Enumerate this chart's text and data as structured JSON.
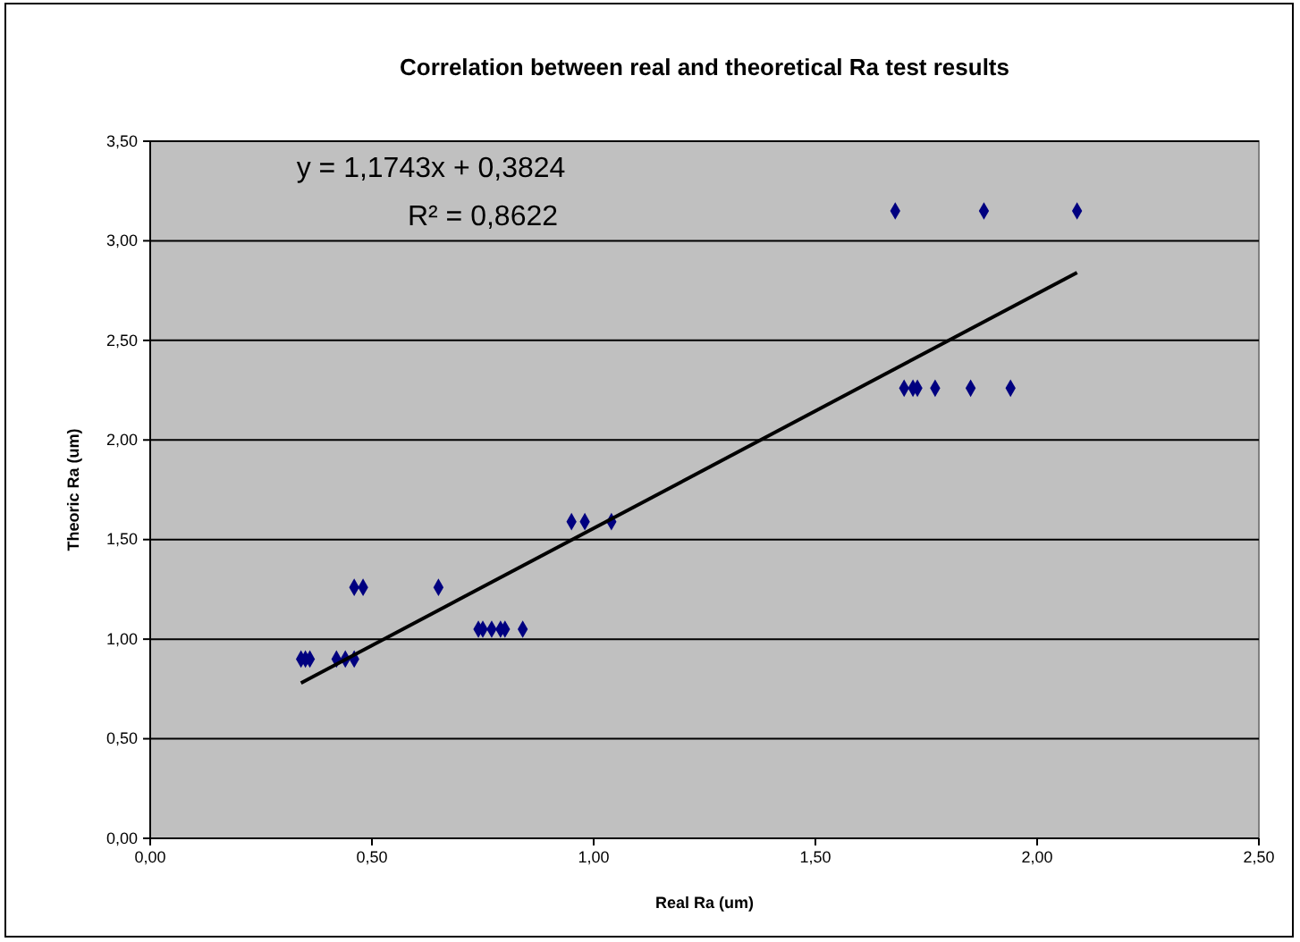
{
  "chart_data": {
    "type": "scatter",
    "title": "Correlation between real and theoretical Ra test results",
    "xlabel": "Real Ra (um)",
    "ylabel": "Theoric Ra (um)",
    "annotations": [
      "y = 1,1743x + 0,3824",
      "R² = 0,8622"
    ],
    "xlim": [
      0,
      2.5
    ],
    "ylim": [
      0,
      3.5
    ],
    "xticks": [
      {
        "value": 0,
        "label": "0,00"
      },
      {
        "value": 0.5,
        "label": "0,50"
      },
      {
        "value": 1,
        "label": "1,00"
      },
      {
        "value": 1.5,
        "label": "1,50"
      },
      {
        "value": 2,
        "label": "2,00"
      },
      {
        "value": 2.5,
        "label": "2,50"
      }
    ],
    "yticks": [
      {
        "value": 0,
        "label": "0,00"
      },
      {
        "value": 0.5,
        "label": "0,50"
      },
      {
        "value": 1,
        "label": "1,00"
      },
      {
        "value": 1.5,
        "label": "1,50"
      },
      {
        "value": 2,
        "label": "2,00"
      },
      {
        "value": 2.5,
        "label": "2,50"
      },
      {
        "value": 3,
        "label": "3,00"
      },
      {
        "value": 3.5,
        "label": "3,50"
      }
    ],
    "grid": "y",
    "series": [
      {
        "color": "#000080",
        "marker": "diamond",
        "x": [
          0.34,
          0.35,
          0.36,
          0.42,
          0.44,
          0.46,
          0.46,
          0.48,
          0.65,
          0.74,
          0.75,
          0.77,
          0.79,
          0.8,
          0.84,
          0.95,
          0.98,
          1.04,
          1.7,
          1.72,
          1.73,
          1.77,
          1.85,
          1.94,
          1.68,
          1.88,
          2.09
        ],
        "values": [
          0.9,
          0.9,
          0.9,
          0.9,
          0.9,
          0.9,
          1.26,
          1.26,
          1.26,
          1.05,
          1.05,
          1.05,
          1.05,
          1.05,
          1.05,
          1.59,
          1.59,
          1.59,
          2.26,
          2.26,
          2.26,
          2.26,
          2.26,
          2.26,
          3.15,
          3.15,
          3.15
        ]
      },
      {
        "type": "line",
        "color": "#000000",
        "x": [
          0.34,
          2.09
        ],
        "values": [
          0.78,
          2.84
        ]
      }
    ]
  }
}
